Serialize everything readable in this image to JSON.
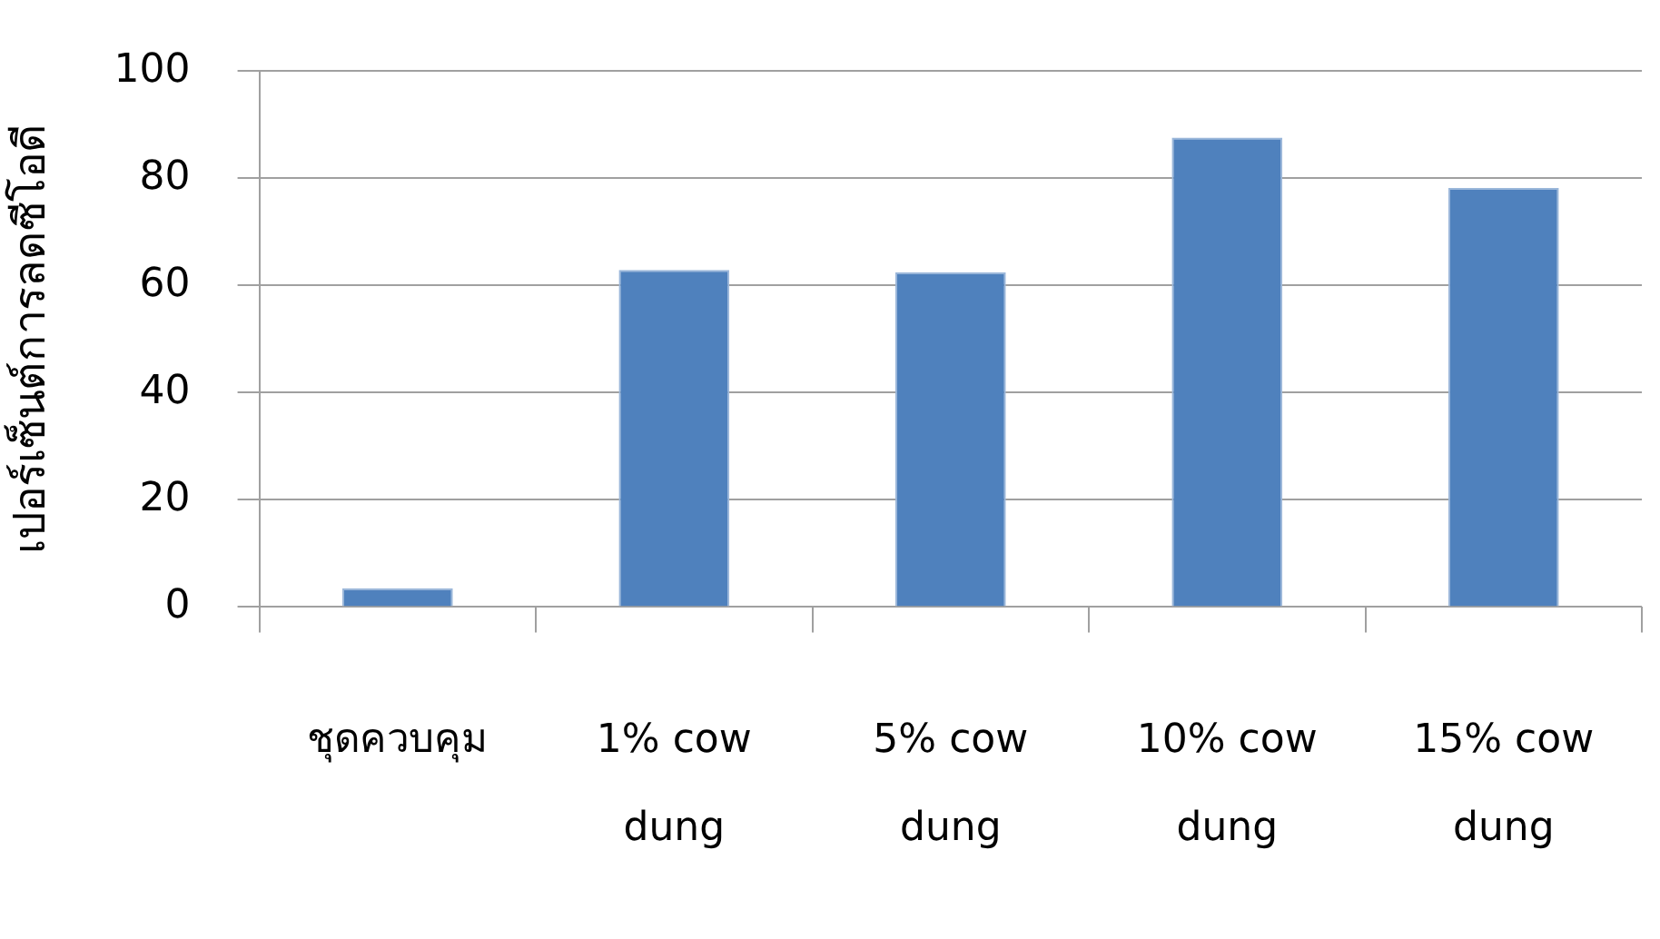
{
  "chart_data": {
    "type": "bar",
    "ylabel": "เปอร์เซ็นต์การลดซีโอดี",
    "categories": [
      "ชุดควบคุม",
      "1% cow dung",
      "5% cow dung",
      "10% cow dung",
      "15% cow dung"
    ],
    "values": [
      3.5,
      62.9,
      62.5,
      87.6,
      78.2
    ],
    "color": "#4f81bd",
    "ylim": [
      0,
      100
    ],
    "yticks": [
      0,
      20,
      40,
      60,
      80,
      100
    ],
    "grid": "y"
  }
}
